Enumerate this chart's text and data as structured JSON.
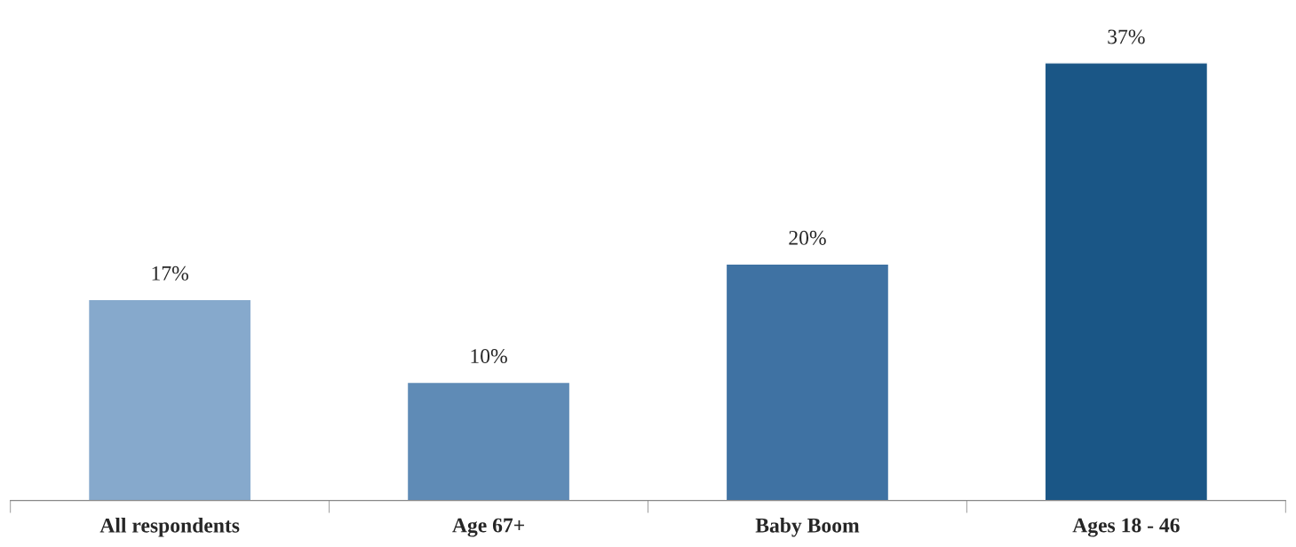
{
  "chart_data": {
    "type": "bar",
    "categories": [
      "All respondents",
      "Age 67+",
      "Baby Boom",
      "Ages 18 - 46"
    ],
    "values": [
      17,
      10,
      20,
      37
    ],
    "colors": [
      "#86a9cc",
      "#5f8bb6",
      "#3f72a3",
      "#1a5686"
    ],
    "value_labels": [
      "17%",
      "10%",
      "20%",
      "37%"
    ],
    "grid": false,
    "legend": false
  }
}
